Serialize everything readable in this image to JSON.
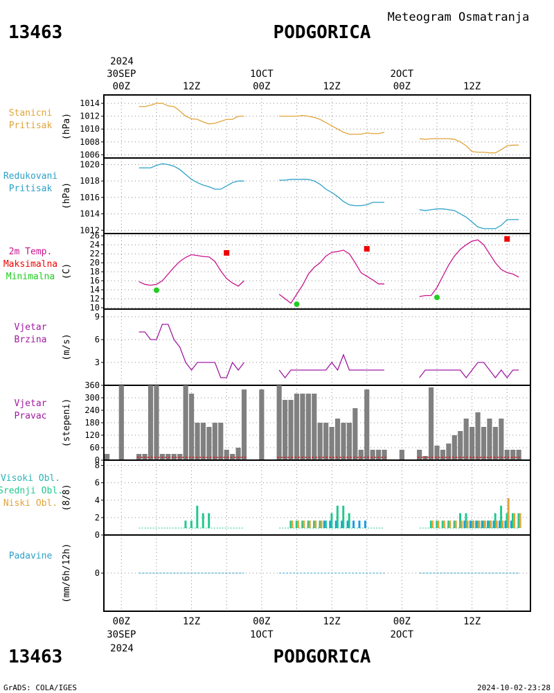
{
  "header": {
    "station_id": "13463",
    "station_name": "PODGORICA",
    "title": "Meteogram Osmatranja"
  },
  "footer": {
    "station_id": "13463",
    "station_name": "PODGORICA",
    "credit": "GrADS: COLA/IGES",
    "timestamp": "2024-10-02-23:28"
  },
  "time_axis": {
    "year": "2024",
    "ticks": [
      {
        "hour": 0,
        "label": "00Z",
        "date": "30SEP"
      },
      {
        "hour": 12,
        "label": "12Z",
        "date": ""
      },
      {
        "hour": 24,
        "label": "00Z",
        "date": "1OCT"
      },
      {
        "hour": 36,
        "label": "12Z",
        "date": ""
      },
      {
        "hour": 48,
        "label": "00Z",
        "date": "2OCT"
      },
      {
        "hour": 60,
        "label": "12Z",
        "date": ""
      }
    ],
    "date_labels": [
      "30SEP",
      "1OCT",
      "2OCT"
    ],
    "range_hours": [
      -3,
      70
    ]
  },
  "colors": {
    "station_pressure": "#e0a43a",
    "reduced_pressure": "#2ba0c8",
    "temperature": "#c8148c",
    "tmax": "#ee0000",
    "tmin": "#22cc22",
    "wind": "#a01aa0",
    "wind_dir_bar": "#808080",
    "high_cloud": "#2ab4b4",
    "mid_cloud": "#1ec88c",
    "low_cloud": "#e0a43a",
    "precip": "#2ba0c8",
    "cloud_bar_blue": "#1a9ae6"
  },
  "chart_data": [
    {
      "id": "station_pressure",
      "type": "line",
      "label_lines": [
        "Stanicni",
        "Pritisak"
      ],
      "unit": "(hPa)",
      "ylim": [
        1005.5,
        1015.3
      ],
      "yticks": [
        1006,
        1008,
        1010,
        1012,
        1014
      ],
      "segments": [
        {
          "x": [
            3,
            4,
            5,
            6,
            7,
            8,
            9,
            10,
            11,
            12,
            13,
            14,
            15,
            16,
            17,
            18,
            19,
            20,
            21
          ],
          "y": [
            1013.5,
            1013.5,
            1013.7,
            1014.0,
            1014.0,
            1013.6,
            1013.5,
            1012.8,
            1012.0,
            1011.6,
            1011.5,
            1011.1,
            1010.8,
            1010.9,
            1011.2,
            1011.5,
            1011.5,
            1012.0,
            1012.0
          ]
        },
        {
          "x": [
            27,
            28,
            29,
            30,
            31,
            32,
            33,
            34,
            35,
            36,
            37,
            38,
            39,
            40,
            41,
            42,
            43,
            44,
            45
          ],
          "y": [
            1012.0,
            1012.0,
            1012.0,
            1012.0,
            1012.1,
            1012.0,
            1011.8,
            1011.5,
            1011.0,
            1010.5,
            1010.0,
            1009.5,
            1009.2,
            1009.2,
            1009.2,
            1009.4,
            1009.3,
            1009.3,
            1009.5
          ]
        },
        {
          "x": [
            51,
            52,
            53,
            54,
            55,
            56,
            57,
            58,
            59,
            60,
            61,
            62,
            63,
            64,
            65,
            66,
            67,
            68
          ],
          "y": [
            1008.5,
            1008.4,
            1008.5,
            1008.5,
            1008.5,
            1008.5,
            1008.4,
            1008.0,
            1007.4,
            1006.5,
            1006.4,
            1006.4,
            1006.3,
            1006.3,
            1006.8,
            1007.4,
            1007.5,
            1007.5
          ]
        }
      ]
    },
    {
      "id": "reduced_pressure",
      "type": "line",
      "label_lines": [
        "Redukovani",
        "Pritisak"
      ],
      "unit": "(hPa)",
      "ylim": [
        1011.6,
        1020.8
      ],
      "yticks": [
        1012,
        1014,
        1016,
        1018,
        1020
      ],
      "segments": [
        {
          "x": [
            3,
            4,
            5,
            6,
            7,
            8,
            9,
            10,
            11,
            12,
            13,
            14,
            15,
            16,
            17,
            18,
            19,
            20,
            21
          ],
          "y": [
            1019.6,
            1019.6,
            1019.6,
            1019.9,
            1020.1,
            1020.0,
            1019.8,
            1019.4,
            1018.8,
            1018.2,
            1017.8,
            1017.5,
            1017.3,
            1017.0,
            1017.0,
            1017.4,
            1017.8,
            1018.0,
            1018.0
          ]
        },
        {
          "x": [
            27,
            28,
            29,
            30,
            31,
            32,
            33,
            34,
            35,
            36,
            37,
            38,
            39,
            40,
            41,
            42,
            43,
            44,
            45
          ],
          "y": [
            1018.1,
            1018.1,
            1018.2,
            1018.2,
            1018.2,
            1018.2,
            1018.0,
            1017.6,
            1017.0,
            1016.6,
            1016.1,
            1015.5,
            1015.1,
            1015.0,
            1015.0,
            1015.1,
            1015.4,
            1015.4,
            1015.4
          ]
        },
        {
          "x": [
            51,
            52,
            53,
            54,
            55,
            56,
            57,
            58,
            59,
            60,
            61,
            62,
            63,
            64,
            65,
            66,
            67,
            68
          ],
          "y": [
            1014.5,
            1014.4,
            1014.5,
            1014.6,
            1014.6,
            1014.5,
            1014.4,
            1014.0,
            1013.6,
            1013.0,
            1012.4,
            1012.2,
            1012.2,
            1012.2,
            1012.6,
            1013.3,
            1013.3,
            1013.3
          ]
        }
      ]
    },
    {
      "id": "temperature",
      "type": "line",
      "label_lines": [
        "2m Temp.",
        "Maksimalna",
        "Minimalna"
      ],
      "unit": "(C)",
      "ylim": [
        9.7,
        26.5
      ],
      "yticks": [
        10,
        12,
        14,
        16,
        18,
        20,
        22,
        24,
        26
      ],
      "segments": [
        {
          "x": [
            3,
            4,
            5,
            6,
            7,
            8,
            9,
            10,
            11,
            12,
            13,
            14,
            15,
            16,
            17,
            18,
            19,
            20,
            21
          ],
          "y": [
            15.8,
            15.2,
            15.0,
            15.2,
            16.0,
            17.5,
            19.0,
            20.3,
            21.2,
            21.8,
            21.6,
            21.4,
            21.3,
            20.3,
            18.2,
            16.5,
            15.5,
            14.8,
            16.0
          ]
        },
        {
          "x": [
            27,
            28,
            29,
            30,
            31,
            32,
            33,
            34,
            35,
            36,
            37,
            38,
            39,
            40,
            41,
            42,
            43,
            44,
            45
          ],
          "y": [
            13.0,
            12.0,
            11.0,
            13.0,
            15.0,
            17.5,
            19.0,
            20.0,
            21.5,
            22.3,
            22.5,
            22.8,
            22.0,
            20.0,
            17.8,
            17.0,
            16.2,
            15.3,
            15.3
          ]
        },
        {
          "x": [
            51,
            52,
            53,
            54,
            55,
            56,
            57,
            58,
            59,
            60,
            61,
            62,
            63,
            64,
            65,
            66,
            67,
            68
          ],
          "y": [
            12.5,
            12.7,
            12.7,
            14.5,
            17.0,
            19.5,
            21.5,
            23.0,
            24.0,
            24.8,
            25.1,
            24.0,
            22.0,
            20.0,
            18.5,
            17.8,
            17.5,
            16.8
          ]
        }
      ],
      "tmax": [
        {
          "x": 18,
          "y": 22.2
        },
        {
          "x": 42,
          "y": 23.1
        },
        {
          "x": 66,
          "y": 25.3
        }
      ],
      "tmin": [
        {
          "x": 6,
          "y": 13.9
        },
        {
          "x": 30,
          "y": 10.8
        },
        {
          "x": 54,
          "y": 12.3
        }
      ]
    },
    {
      "id": "wind_speed",
      "type": "line",
      "label_lines": [
        "Vjetar",
        "Brzina"
      ],
      "unit": "(m/s)",
      "ylim": [
        0,
        10
      ],
      "yticks": [
        3,
        6,
        9
      ],
      "segments": [
        {
          "x": [
            3,
            4,
            5,
            6,
            7,
            8,
            9,
            10,
            11,
            12,
            13,
            14,
            15,
            16,
            17,
            18,
            19,
            20,
            21
          ],
          "y": [
            7,
            7,
            6,
            6,
            8,
            8,
            6,
            5,
            3,
            2,
            3,
            3,
            3,
            3,
            1,
            1,
            3,
            2,
            3
          ]
        },
        {
          "x": [
            27,
            28,
            29,
            30,
            31,
            32,
            33,
            34,
            35,
            36,
            37,
            38,
            39,
            40,
            41,
            42,
            43,
            44,
            45
          ],
          "y": [
            2,
            1,
            2,
            2,
            2,
            2,
            2,
            2,
            2,
            3,
            2,
            4,
            2,
            2,
            2,
            2,
            2,
            2,
            2
          ]
        },
        {
          "x": [
            51,
            52,
            53,
            54,
            55,
            56,
            57,
            58,
            59,
            60,
            61,
            62,
            63,
            64,
            65,
            66,
            67,
            68
          ],
          "y": [
            1,
            2,
            2,
            2,
            2,
            2,
            2,
            2,
            1,
            2,
            3,
            3,
            2,
            1,
            2,
            1,
            2,
            2
          ]
        }
      ]
    },
    {
      "id": "wind_direction",
      "type": "bar",
      "label_lines": [
        "Vjetar",
        "Pravac"
      ],
      "unit": "(stepeni)",
      "ylim": [
        0,
        360
      ],
      "yticks": [
        0,
        60,
        120,
        180,
        240,
        300,
        360
      ],
      "x": [
        -3,
        0,
        3,
        4,
        5,
        6,
        7,
        8,
        9,
        10,
        11,
        12,
        13,
        14,
        15,
        16,
        17,
        18,
        19,
        20,
        21,
        24,
        27,
        28,
        29,
        30,
        31,
        32,
        33,
        34,
        35,
        36,
        37,
        38,
        39,
        40,
        41,
        42,
        43,
        44,
        45,
        48,
        51,
        52,
        53,
        54,
        55,
        56,
        57,
        58,
        59,
        60,
        61,
        62,
        63,
        64,
        65,
        66,
        67,
        68
      ],
      "values": [
        30,
        360,
        30,
        30,
        360,
        360,
        30,
        30,
        30,
        30,
        360,
        320,
        180,
        180,
        160,
        180,
        180,
        50,
        30,
        60,
        340,
        340,
        360,
        290,
        290,
        320,
        320,
        320,
        320,
        180,
        180,
        160,
        200,
        180,
        180,
        250,
        50,
        340,
        50,
        50,
        50,
        50,
        50,
        20,
        350,
        70,
        50,
        80,
        120,
        140,
        200,
        160,
        230,
        160,
        200,
        160,
        200,
        50,
        50,
        50
      ],
      "calm_line": true
    },
    {
      "id": "cloud_cover",
      "type": "bar",
      "label_lines": [
        "Visoki Obl.",
        "Srednji Obl.",
        "Niski Obl."
      ],
      "unit": "(8/8)",
      "ylim": [
        0,
        8.6
      ],
      "yticks": [
        0,
        2,
        4,
        6,
        8
      ],
      "series": [
        {
          "name": "Visoki Obl.",
          "x": [
            35,
            36,
            37,
            38,
            39,
            40,
            41,
            42,
            59,
            60,
            61,
            62,
            63,
            64,
            65,
            66,
            67
          ],
          "values": [
            1,
            1,
            1,
            1,
            1,
            1,
            1,
            1,
            1,
            1,
            1,
            1,
            1,
            1,
            1,
            1,
            1
          ]
        },
        {
          "name": "Srednji Obl.",
          "x": [
            11,
            12,
            13,
            14,
            15,
            29,
            30,
            31,
            32,
            33,
            34,
            35,
            36,
            37,
            38,
            39,
            40,
            41,
            42,
            53,
            54,
            55,
            56,
            57,
            58,
            59,
            60,
            61,
            62,
            63,
            64,
            65,
            66,
            67,
            68
          ],
          "values": [
            1,
            1,
            3,
            2,
            2,
            1,
            1,
            1,
            1,
            1,
            1,
            1,
            2,
            3,
            3,
            2,
            0,
            0,
            0,
            1,
            1,
            1,
            1,
            1,
            2,
            2,
            1,
            1,
            1,
            1,
            2,
            3,
            2,
            2,
            2
          ]
        },
        {
          "name": "Niski Obl.",
          "x": [
            29,
            30,
            31,
            32,
            33,
            34,
            53,
            54,
            55,
            56,
            57,
            58,
            59,
            60,
            61,
            62,
            63,
            64,
            65,
            66,
            67,
            68
          ],
          "values": [
            1,
            1,
            1,
            1,
            1,
            1,
            1,
            1,
            1,
            1,
            1,
            1,
            1,
            1,
            1,
            1,
            1,
            1,
            1,
            4,
            2,
            2
          ]
        }
      ]
    },
    {
      "id": "precipitation",
      "type": "line",
      "label_lines": [
        "Padavine"
      ],
      "unit": "(mm/6h/12h)",
      "ylim": [
        -1,
        1
      ],
      "yticks": [
        0
      ],
      "segments": [
        {
          "x": [
            3,
            21
          ],
          "y": [
            0,
            0
          ]
        },
        {
          "x": [
            27,
            45
          ],
          "y": [
            0,
            0
          ]
        },
        {
          "x": [
            51,
            68
          ],
          "y": [
            0,
            0
          ]
        }
      ]
    }
  ]
}
